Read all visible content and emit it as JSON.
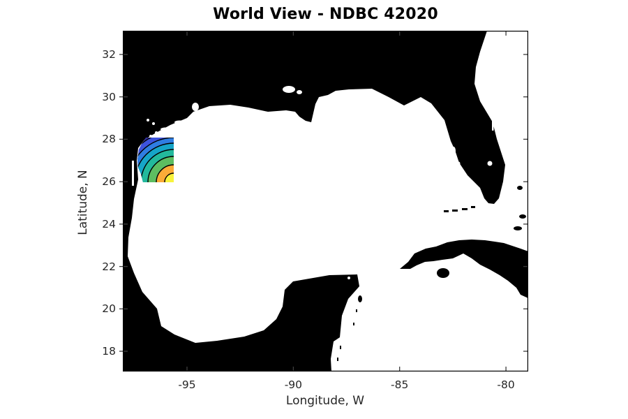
{
  "figure": {
    "title": "World View - NDBC 42020",
    "background_color": "#ffffff"
  },
  "axes": {
    "xlabel": "Longitude, W",
    "ylabel": "Latitude, N",
    "x_tick_labels": [
      "-95",
      "-90",
      "-85",
      "-80"
    ],
    "y_tick_labels": [
      "32",
      "30",
      "28",
      "26",
      "24",
      "22",
      "20",
      "18"
    ]
  },
  "chart_data": {
    "type": "heatmap",
    "title": "World View - NDBC 42020",
    "station_id": "NDBC 42020",
    "xlabel": "Longitude, W",
    "ylabel": "Latitude, N",
    "x_ticks": [
      -95,
      -90,
      -85,
      -80
    ],
    "y_ticks": [
      32,
      30,
      28,
      26,
      24,
      22,
      20,
      18
    ],
    "xlim": [
      -98.0,
      -79.0
    ],
    "ylim": [
      17.05,
      33.1
    ],
    "grid": false,
    "legend": "none",
    "map": {
      "land_color": "#000000",
      "water_color": "#ffffff",
      "regions_depicted": [
        "Gulf of Mexico",
        "Texas-Mexico coast",
        "Mississippi delta",
        "Florida",
        "Atlantic Ocean",
        "Cuba",
        "Isla de la Juventud",
        "Yucatan Peninsula",
        "Caribbean Sea",
        "Bahamas",
        "Florida Keys"
      ]
    },
    "contour_patch": {
      "description": "filled contour patch over water near station, values increase toward southeast corner",
      "lon_range": [
        -97.3,
        -95.6
      ],
      "lat_range": [
        26.0,
        28.1
      ],
      "bands_outer_to_inner": [
        "#33309e",
        "#3d53dd",
        "#2f7de2",
        "#16a5c8",
        "#23b99c",
        "#5dbd61",
        "#fbab38",
        "#f8f33c"
      ],
      "contour_line_color": "#000000"
    }
  }
}
